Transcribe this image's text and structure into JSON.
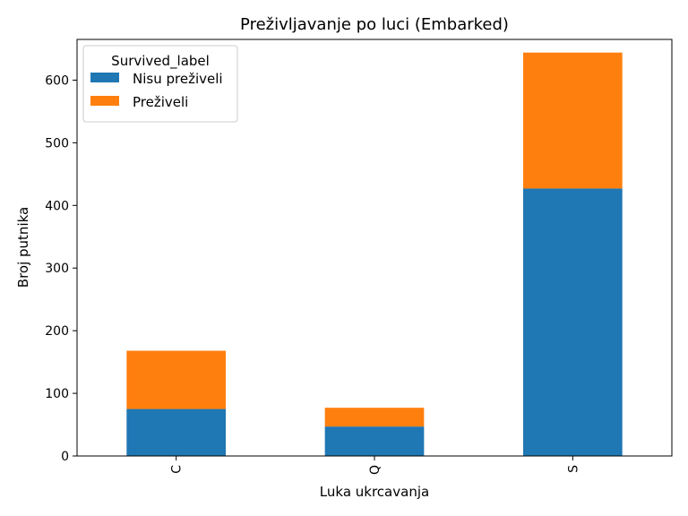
{
  "chart_data": {
    "type": "bar",
    "stacked": true,
    "title": "Preživljavanje po luci (Embarked)",
    "xlabel": "Luka ukrcavanja",
    "ylabel": "Broj putnika",
    "categories": [
      "C",
      "Q",
      "S"
    ],
    "series": [
      {
        "name": "Nisu preživeli",
        "values": [
          75,
          47,
          427
        ],
        "color": "#1f77b4"
      },
      {
        "name": "Preživeli",
        "values": [
          93,
          30,
          217
        ],
        "color": "#ff7f0e"
      }
    ],
    "ylim": [
      0,
      665
    ],
    "yticks": [
      0,
      100,
      200,
      300,
      400,
      500,
      600
    ],
    "legend": {
      "title": "Survived_label",
      "position": "top-left"
    },
    "grid": false
  }
}
